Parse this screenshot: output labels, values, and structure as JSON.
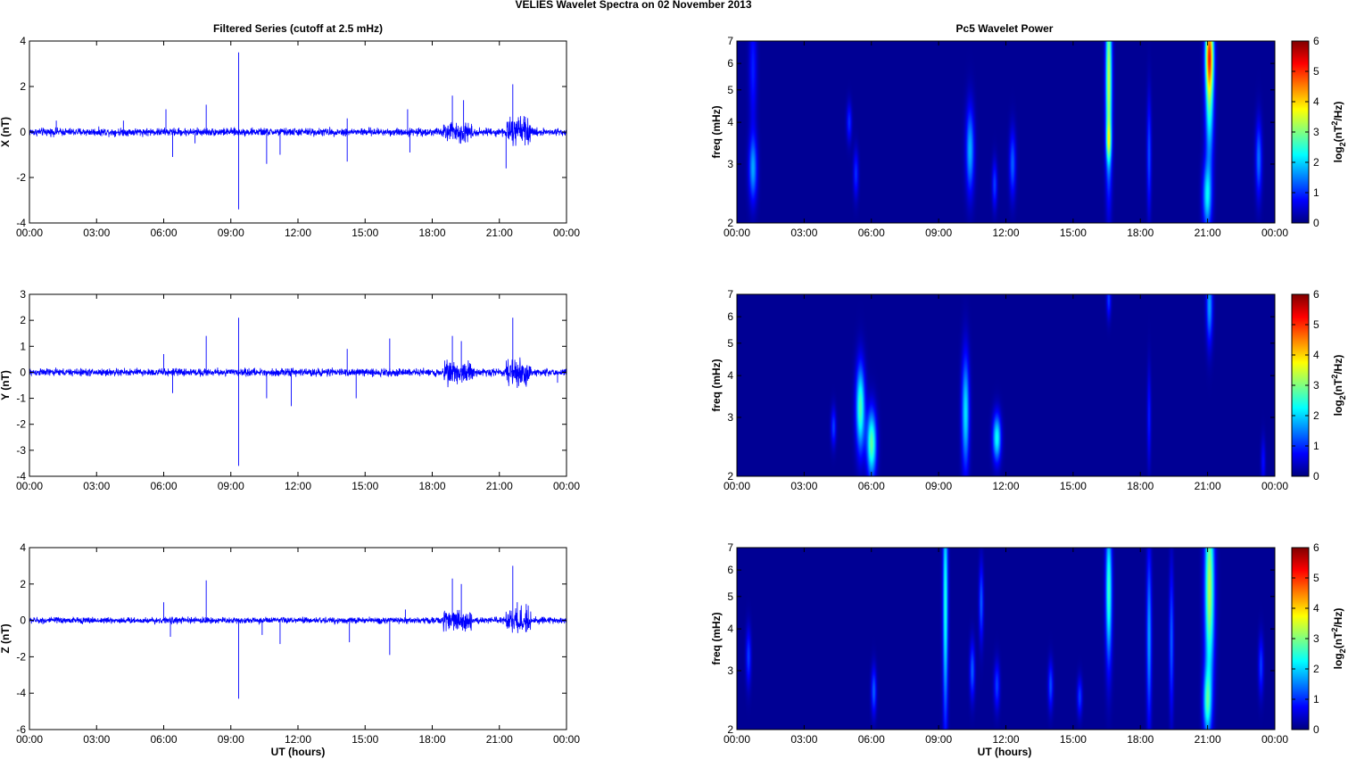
{
  "figure": {
    "title": "VELIES Wavelet Spectra on 02 November  2013",
    "left_column_title": "Filtered Series (cutoff at 2.5 mHz)",
    "right_column_title": "Pc5 Wavelet Power",
    "xlabel": "UT (hours)",
    "x_tick_labels": [
      "00:00",
      "03:00",
      "06:00",
      "09:00",
      "12:00",
      "15:00",
      "18:00",
      "21:00",
      "00:00"
    ]
  },
  "colors": {
    "series_line": "#0000ff",
    "spectrogram_background": "#00008f",
    "colormap": "jet"
  },
  "chart_data": [
    {
      "type": "line",
      "name": "X",
      "ylabel": "X (nT)",
      "ylim": [
        -4,
        4
      ],
      "yticks": [
        -4,
        -2,
        0,
        2,
        4
      ],
      "xlim_hours": [
        0,
        24
      ],
      "baseline_noise": 0.12,
      "activity_windows": [
        {
          "start": 18.5,
          "end": 19.8,
          "amp": 0.2
        },
        {
          "start": 21.3,
          "end": 22.4,
          "amp": 0.3
        }
      ],
      "spikes": [
        {
          "t": 1.2,
          "v": 0.5
        },
        {
          "t": 4.2,
          "v": 0.5
        },
        {
          "t": 6.1,
          "v": 1.0
        },
        {
          "t": 6.4,
          "v": -1.1
        },
        {
          "t": 7.4,
          "v": -0.5
        },
        {
          "t": 7.9,
          "v": 1.2
        },
        {
          "t": 9.35,
          "v": 3.5
        },
        {
          "t": 9.35,
          "v": -3.4
        },
        {
          "t": 10.6,
          "v": -1.4
        },
        {
          "t": 11.2,
          "v": -1.0
        },
        {
          "t": 14.2,
          "v": -1.3
        },
        {
          "t": 14.2,
          "v": 0.6
        },
        {
          "t": 16.9,
          "v": 1.0
        },
        {
          "t": 17.0,
          "v": -0.9
        },
        {
          "t": 18.9,
          "v": 1.6
        },
        {
          "t": 19.4,
          "v": 1.4
        },
        {
          "t": 21.3,
          "v": -1.6
        },
        {
          "t": 21.6,
          "v": 2.1
        },
        {
          "t": 22.1,
          "v": 0.7
        }
      ]
    },
    {
      "type": "line",
      "name": "Y",
      "ylabel": "Y (nT)",
      "ylim": [
        -4,
        3
      ],
      "yticks": [
        -4,
        -3,
        -2,
        -1,
        0,
        1,
        2,
        3
      ],
      "xlim_hours": [
        0,
        24
      ],
      "baseline_noise": 0.1,
      "activity_windows": [
        {
          "start": 18.5,
          "end": 19.8,
          "amp": 0.2
        },
        {
          "start": 21.3,
          "end": 22.4,
          "amp": 0.25
        }
      ],
      "spikes": [
        {
          "t": 6.0,
          "v": 0.7
        },
        {
          "t": 6.4,
          "v": -0.8
        },
        {
          "t": 7.9,
          "v": 1.4
        },
        {
          "t": 9.35,
          "v": 2.1
        },
        {
          "t": 9.35,
          "v": -3.6
        },
        {
          "t": 10.6,
          "v": -1.0
        },
        {
          "t": 11.7,
          "v": -1.3
        },
        {
          "t": 14.2,
          "v": 0.9
        },
        {
          "t": 14.6,
          "v": -1.0
        },
        {
          "t": 16.1,
          "v": 1.3
        },
        {
          "t": 18.9,
          "v": 1.4
        },
        {
          "t": 19.3,
          "v": 1.2
        },
        {
          "t": 21.6,
          "v": 2.1
        },
        {
          "t": 21.8,
          "v": -0.6
        },
        {
          "t": 23.6,
          "v": -0.4
        }
      ]
    },
    {
      "type": "line",
      "name": "Z",
      "ylabel": "Z (nT)",
      "ylim": [
        -6,
        4
      ],
      "yticks": [
        -6,
        -4,
        -2,
        0,
        2,
        4
      ],
      "xlim_hours": [
        0,
        24
      ],
      "baseline_noise": 0.12,
      "activity_windows": [
        {
          "start": 18.5,
          "end": 19.8,
          "amp": 0.3
        },
        {
          "start": 21.3,
          "end": 22.4,
          "amp": 0.4
        }
      ],
      "spikes": [
        {
          "t": 6.0,
          "v": 1.0
        },
        {
          "t": 6.3,
          "v": -0.9
        },
        {
          "t": 7.9,
          "v": 2.2
        },
        {
          "t": 9.35,
          "v": -4.3
        },
        {
          "t": 10.4,
          "v": -0.8
        },
        {
          "t": 11.2,
          "v": -1.3
        },
        {
          "t": 14.3,
          "v": -1.2
        },
        {
          "t": 16.1,
          "v": -1.9
        },
        {
          "t": 16.8,
          "v": 0.6
        },
        {
          "t": 18.9,
          "v": 2.3
        },
        {
          "t": 19.3,
          "v": 2.0
        },
        {
          "t": 21.6,
          "v": 3.0
        },
        {
          "t": 21.8,
          "v": 1.0
        },
        {
          "t": 22.2,
          "v": 0.9
        }
      ]
    },
    {
      "type": "heatmap",
      "name": "X wavelet power",
      "ylabel": "freq (mHz)",
      "yscale": "log",
      "ylim": [
        2,
        7
      ],
      "yticks": [
        2,
        3,
        4,
        5,
        6,
        7
      ],
      "colorbar_label": "log2(nT^2/Hz)",
      "colorbar_ticks": [
        0,
        1,
        2,
        3,
        4,
        5,
        6
      ],
      "blobs": [
        {
          "t": 0.7,
          "f": 2.9,
          "dt": 0.13,
          "dlogf": 0.07,
          "p": 1.6
        },
        {
          "t": 0.7,
          "f": 5.8,
          "dt": 0.12,
          "dlogf": 0.12,
          "p": 0.8
        },
        {
          "t": 5.3,
          "f": 2.8,
          "dt": 0.08,
          "dlogf": 0.05,
          "p": 0.9
        },
        {
          "t": 5.0,
          "f": 4.0,
          "dt": 0.08,
          "dlogf": 0.04,
          "p": 0.9
        },
        {
          "t": 10.4,
          "f": 3.3,
          "dt": 0.13,
          "dlogf": 0.09,
          "p": 1.7
        },
        {
          "t": 11.5,
          "f": 2.6,
          "dt": 0.08,
          "dlogf": 0.05,
          "p": 1.0
        },
        {
          "t": 12.3,
          "f": 3.0,
          "dt": 0.1,
          "dlogf": 0.07,
          "p": 1.2
        },
        {
          "t": 16.6,
          "f": 5.3,
          "dt": 0.1,
          "dlogf": 0.2,
          "p": 3.3
        },
        {
          "t": 16.6,
          "f": 3.5,
          "dt": 0.08,
          "dlogf": 0.04,
          "p": 1.5
        },
        {
          "t": 18.4,
          "f": 3.2,
          "dt": 0.07,
          "dlogf": 0.12,
          "p": 1.1
        },
        {
          "t": 21.1,
          "f": 6.5,
          "dt": 0.13,
          "dlogf": 0.08,
          "p": 3.8
        },
        {
          "t": 21.1,
          "f": 4.6,
          "dt": 0.13,
          "dlogf": 0.13,
          "p": 2.3
        },
        {
          "t": 21.0,
          "f": 2.4,
          "dt": 0.14,
          "dlogf": 0.07,
          "p": 2.0
        },
        {
          "t": 23.3,
          "f": 3.1,
          "dt": 0.1,
          "dlogf": 0.08,
          "p": 1.3
        }
      ]
    },
    {
      "type": "heatmap",
      "name": "Y wavelet power",
      "ylabel": "freq (mHz)",
      "yscale": "log",
      "ylim": [
        2,
        7
      ],
      "yticks": [
        2,
        3,
        4,
        5,
        6,
        7
      ],
      "colorbar_label": "log2(nT^2/Hz)",
      "colorbar_ticks": [
        0,
        1,
        2,
        3,
        4,
        5,
        6
      ],
      "blobs": [
        {
          "t": 4.3,
          "f": 2.8,
          "dt": 0.08,
          "dlogf": 0.04,
          "p": 1.0
        },
        {
          "t": 5.5,
          "f": 3.2,
          "dt": 0.14,
          "dlogf": 0.09,
          "p": 2.6
        },
        {
          "t": 6.0,
          "f": 2.5,
          "dt": 0.15,
          "dlogf": 0.07,
          "p": 2.7
        },
        {
          "t": 10.2,
          "f": 3.1,
          "dt": 0.12,
          "dlogf": 0.12,
          "p": 2.0
        },
        {
          "t": 11.6,
          "f": 2.6,
          "dt": 0.13,
          "dlogf": 0.05,
          "p": 2.2
        },
        {
          "t": 16.6,
          "f": 6.8,
          "dt": 0.07,
          "dlogf": 0.04,
          "p": 1.0
        },
        {
          "t": 18.4,
          "f": 3.0,
          "dt": 0.06,
          "dlogf": 0.1,
          "p": 0.8
        },
        {
          "t": 21.1,
          "f": 6.5,
          "dt": 0.1,
          "dlogf": 0.08,
          "p": 1.6
        },
        {
          "t": 23.5,
          "f": 2.2,
          "dt": 0.07,
          "dlogf": 0.05,
          "p": 0.7
        }
      ]
    },
    {
      "type": "heatmap",
      "name": "Z wavelet power",
      "ylabel": "freq (mHz)",
      "yscale": "log",
      "ylim": [
        2,
        7
      ],
      "yticks": [
        2,
        3,
        4,
        5,
        6,
        7
      ],
      "colorbar_label": "log2(nT^2/Hz)",
      "colorbar_ticks": [
        0,
        1,
        2,
        3,
        4,
        5,
        6
      ],
      "blobs": [
        {
          "t": 0.5,
          "f": 3.3,
          "dt": 0.08,
          "dlogf": 0.06,
          "p": 1.0
        },
        {
          "t": 6.1,
          "f": 2.6,
          "dt": 0.08,
          "dlogf": 0.05,
          "p": 1.2
        },
        {
          "t": 9.3,
          "f": 4.8,
          "dt": 0.08,
          "dlogf": 0.25,
          "p": 2.3
        },
        {
          "t": 10.5,
          "f": 3.0,
          "dt": 0.08,
          "dlogf": 0.06,
          "p": 1.2
        },
        {
          "t": 10.9,
          "f": 4.8,
          "dt": 0.07,
          "dlogf": 0.08,
          "p": 1.2
        },
        {
          "t": 11.6,
          "f": 2.7,
          "dt": 0.09,
          "dlogf": 0.05,
          "p": 1.0
        },
        {
          "t": 14.0,
          "f": 2.7,
          "dt": 0.08,
          "dlogf": 0.05,
          "p": 1.1
        },
        {
          "t": 15.3,
          "f": 2.5,
          "dt": 0.08,
          "dlogf": 0.04,
          "p": 1.0
        },
        {
          "t": 16.6,
          "f": 5.2,
          "dt": 0.1,
          "dlogf": 0.15,
          "p": 2.5
        },
        {
          "t": 18.4,
          "f": 3.8,
          "dt": 0.08,
          "dlogf": 0.18,
          "p": 1.6
        },
        {
          "t": 19.4,
          "f": 3.7,
          "dt": 0.07,
          "dlogf": 0.15,
          "p": 1.2
        },
        {
          "t": 21.1,
          "f": 5.3,
          "dt": 0.15,
          "dlogf": 0.2,
          "p": 3.2
        },
        {
          "t": 21.0,
          "f": 2.4,
          "dt": 0.13,
          "dlogf": 0.07,
          "p": 2.1
        },
        {
          "t": 23.4,
          "f": 3.1,
          "dt": 0.08,
          "dlogf": 0.06,
          "p": 1.0
        }
      ]
    }
  ]
}
